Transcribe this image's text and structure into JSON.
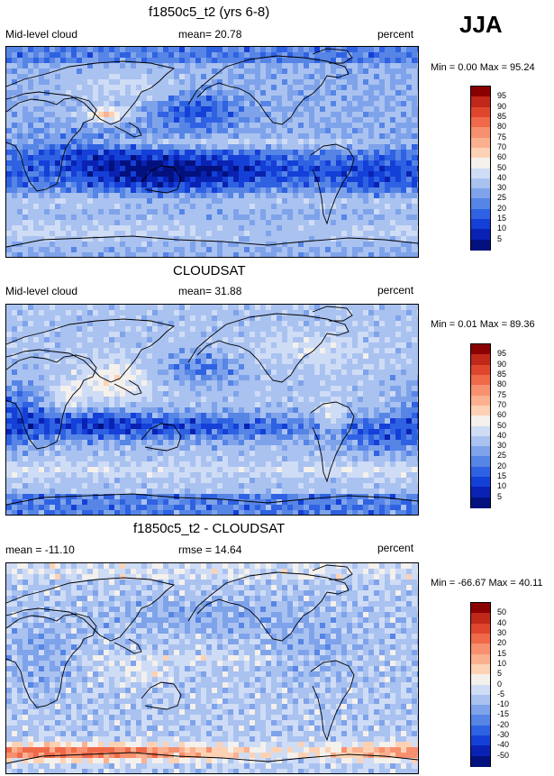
{
  "season": "JJA",
  "panels": [
    {
      "title": "f1850c5_t2 (yrs 6-8)",
      "left_label": "Mid-level cloud",
      "center_label": "mean=  20.78",
      "units": "percent",
      "minmax": "Min =   0.00 Max =  95.24",
      "colorbar": {
        "labels": [
          "95",
          "90",
          "85",
          "80",
          "75",
          "70",
          "60",
          "50",
          "40",
          "30",
          "25",
          "20",
          "15",
          "10",
          "5"
        ],
        "colors": [
          "#8b0000",
          "#c0281a",
          "#e0462e",
          "#f06a4a",
          "#f7906e",
          "#fbb090",
          "#fdd2b4",
          "#f4f0ec",
          "#cfdcf5",
          "#a9c2f0",
          "#7fa3ea",
          "#5685e6",
          "#2f62e2",
          "#1440d8",
          "#0a22b4",
          "#03117e"
        ]
      },
      "scheme": "abs1"
    },
    {
      "title": "CLOUDSAT",
      "left_label": "Mid-level cloud",
      "center_label": "mean=  31.88",
      "units": "percent",
      "minmax": "Min =   0.01 Max =  89.36",
      "colorbar": {
        "labels": [
          "95",
          "90",
          "85",
          "80",
          "75",
          "70",
          "60",
          "50",
          "40",
          "30",
          "25",
          "20",
          "15",
          "10",
          "5"
        ],
        "colors": [
          "#8b0000",
          "#c0281a",
          "#e0462e",
          "#f06a4a",
          "#f7906e",
          "#fbb090",
          "#fdd2b4",
          "#f4f0ec",
          "#cfdcf5",
          "#a9c2f0",
          "#7fa3ea",
          "#5685e6",
          "#2f62e2",
          "#1440d8",
          "#0a22b4",
          "#03117e"
        ]
      },
      "scheme": "abs2"
    },
    {
      "title": "f1850c5_t2 - CLOUDSAT",
      "left_label": "mean = -11.10",
      "center_label": "rmse =  14.64",
      "units": "percent",
      "minmax": "Min = -66.67 Max =  40.11",
      "colorbar": {
        "labels": [
          "50",
          "40",
          "30",
          "20",
          "15",
          "10",
          "5",
          "0",
          "-5",
          "-10",
          "-15",
          "-20",
          "-30",
          "-40",
          "-50"
        ],
        "colors": [
          "#8b0000",
          "#c0281a",
          "#e0462e",
          "#f06a4a",
          "#f7906e",
          "#fbb090",
          "#fdd2b4",
          "#f4f0ec",
          "#cfdcf5",
          "#a9c2f0",
          "#7fa3ea",
          "#5685e6",
          "#2f62e2",
          "#1440d8",
          "#0a22b4",
          "#03117e"
        ]
      },
      "scheme": "diff"
    }
  ]
}
